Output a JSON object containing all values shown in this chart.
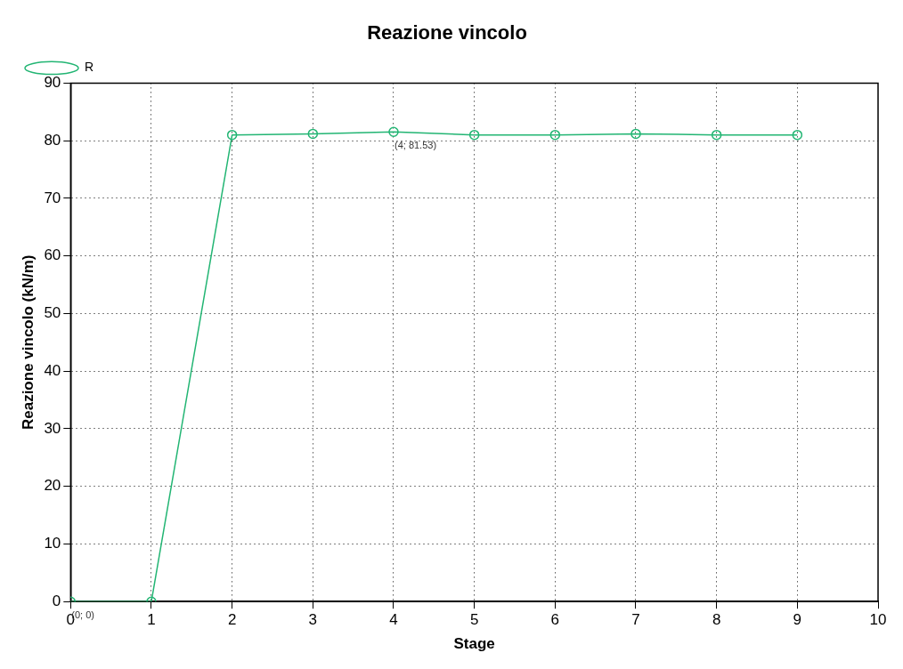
{
  "chart_data": {
    "type": "line",
    "title": "Reazione vincolo",
    "xlabel": "Stage",
    "ylabel": "Reazione vincolo (kN/m)",
    "x": [
      0,
      1,
      2,
      3,
      4,
      5,
      6,
      7,
      8,
      9
    ],
    "series": [
      {
        "name": "R",
        "color": "#22b573",
        "values": [
          0,
          0,
          81.0,
          81.2,
          81.53,
          81.0,
          81.0,
          81.2,
          81.0,
          81.0
        ]
      }
    ],
    "xlim": [
      0,
      10
    ],
    "xticks": [
      0,
      1,
      2,
      3,
      4,
      5,
      6,
      7,
      8,
      9,
      10
    ],
    "ylim": [
      0,
      90
    ],
    "yticks": [
      0,
      10,
      20,
      30,
      40,
      50,
      60,
      70,
      80,
      90
    ],
    "grid": true,
    "legend": "top left",
    "marker": "circle",
    "line_style": "solid",
    "annotations": [
      {
        "text": "(0; 0)",
        "x": 0,
        "y": 0
      },
      {
        "text": "(4; 81.53)",
        "x": 4,
        "y": 81.53
      }
    ]
  }
}
